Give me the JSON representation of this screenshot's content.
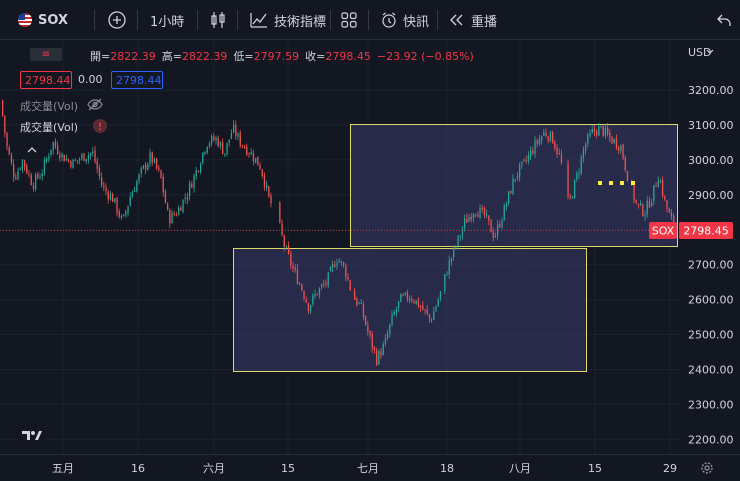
{
  "toolbar": {
    "symbol": "SOX",
    "interval": "1小時",
    "indicators_label": "技術指標",
    "alert_label": "快訊",
    "replay_label": "重播"
  },
  "legend": {
    "ohlc": [
      {
        "k": "開=",
        "v": "2822.39"
      },
      {
        "k": "高=",
        "v": "2822.39"
      },
      {
        "k": "低=",
        "v": "2797.59"
      },
      {
        "k": "收=",
        "v": "2798.45"
      },
      {
        "k": "",
        "v": "−23.92 (−0.85%)"
      }
    ],
    "bid": "2798.44",
    "spread": "0.00",
    "ask": "2798.44",
    "volume_label_1": "成交量(Vol)",
    "volume_label_2": "成交量(Vol)",
    "toggle_glyph": "≡"
  },
  "price_axis": {
    "currency": "USD",
    "ticks": [
      "3200.00",
      "3100.00",
      "3000.00",
      "2900.00",
      "2800.00",
      "2700.00",
      "2600.00",
      "2500.00",
      "2400.00",
      "2300.00",
      "2200.00"
    ],
    "last_symbol": "SOX",
    "last_price": "2798.45"
  },
  "time_axis": {
    "ticks": [
      "五月",
      "16",
      "六月",
      "15",
      "七月",
      "18",
      "八月",
      "15",
      "29"
    ]
  },
  "colors": {
    "up": "#26a69a",
    "down": "#ef5350",
    "box_fill": "#3b3a6b",
    "box_border": "#e0d96a"
  },
  "chart_data": {
    "type": "candlestick",
    "symbol": "SOX",
    "interval": "1小時",
    "ylim": [
      2170,
      3240
    ],
    "x_ticks": [
      "五月",
      "16",
      "六月",
      "15",
      "七月",
      "18",
      "八月",
      "15",
      "29"
    ],
    "path": [
      [
        0,
        3170
      ],
      [
        6,
        3040
      ],
      [
        14,
        2950
      ],
      [
        22,
        3000
      ],
      [
        32,
        2930
      ],
      [
        42,
        2970
      ],
      [
        52,
        3050
      ],
      [
        62,
        3010
      ],
      [
        72,
        2990
      ],
      [
        82,
        3010
      ],
      [
        92,
        3020
      ],
      [
        102,
        2920
      ],
      [
        112,
        2890
      ],
      [
        122,
        2820
      ],
      [
        130,
        2900
      ],
      [
        140,
        2960
      ],
      [
        150,
        3010
      ],
      [
        160,
        2950
      ],
      [
        168,
        2830
      ],
      [
        176,
        2850
      ],
      [
        186,
        2900
      ],
      [
        196,
        2970
      ],
      [
        206,
        3050
      ],
      [
        216,
        3060
      ],
      [
        224,
        3020
      ],
      [
        232,
        3090
      ],
      [
        240,
        3050
      ],
      [
        250,
        3020
      ],
      [
        260,
        2980
      ],
      [
        268,
        2890
      ],
      [
        276,
        2840
      ],
      [
        284,
        2750
      ],
      [
        292,
        2690
      ],
      [
        300,
        2640
      ],
      [
        308,
        2580
      ],
      [
        316,
        2620
      ],
      [
        326,
        2650
      ],
      [
        336,
        2720
      ],
      [
        344,
        2690
      ],
      [
        352,
        2610
      ],
      [
        360,
        2580
      ],
      [
        368,
        2500
      ],
      [
        376,
        2430
      ],
      [
        384,
        2470
      ],
      [
        392,
        2550
      ],
      [
        400,
        2600
      ],
      [
        410,
        2610
      ],
      [
        420,
        2580
      ],
      [
        430,
        2540
      ],
      [
        440,
        2620
      ],
      [
        448,
        2700
      ],
      [
        456,
        2760
      ],
      [
        464,
        2820
      ],
      [
        474,
        2860
      ],
      [
        484,
        2840
      ],
      [
        494,
        2780
      ],
      [
        504,
        2860
      ],
      [
        514,
        2950
      ],
      [
        524,
        2990
      ],
      [
        534,
        3040
      ],
      [
        544,
        3080
      ],
      [
        552,
        3060
      ],
      [
        560,
        3000
      ],
      [
        568,
        2870
      ],
      [
        576,
        2950
      ],
      [
        584,
        3040
      ],
      [
        592,
        3080
      ],
      [
        600,
        3090
      ],
      [
        610,
        3060
      ],
      [
        620,
        3040
      ],
      [
        628,
        2940
      ],
      [
        636,
        2870
      ],
      [
        644,
        2850
      ],
      [
        652,
        2900
      ],
      [
        658,
        2960
      ],
      [
        664,
        2880
      ],
      [
        670,
        2830
      ],
      [
        676,
        2798.45
      ]
    ],
    "last": 2798.45,
    "change": "−23.92 (−0.85%)",
    "annotations": [
      {
        "type": "rectangle",
        "x": [
          350,
          677
        ],
        "y": [
          2750,
          3100
        ]
      },
      {
        "type": "rectangle",
        "x": [
          233,
          587
        ],
        "y": [
          2395,
          2750
        ]
      }
    ]
  }
}
